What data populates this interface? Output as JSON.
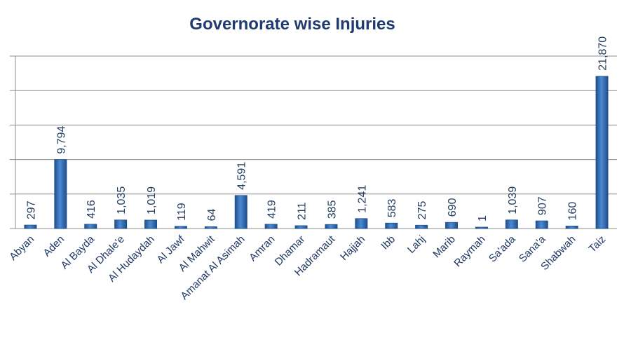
{
  "chart_data": {
    "type": "bar",
    "title": "Governorate wise Injuries",
    "categories": [
      "Abyan",
      "Aden",
      "Al Bayda",
      "Al Dhale'e",
      "Al Hudaydah",
      "Al Jawf",
      "Al Mahwit",
      "Amanat Al Asimah",
      "Amran",
      "Dhamar",
      "Hadramaut",
      "Hajjah",
      "Ibb",
      "Lahj",
      "Marib",
      "Raymah",
      "Sa'ada",
      "Sana'a",
      "Shabwah",
      "Taiz"
    ],
    "values": [
      297,
      9794,
      416,
      1035,
      1019,
      119,
      64,
      4591,
      419,
      211,
      385,
      1241,
      583,
      275,
      690,
      1,
      1039,
      907,
      160,
      21870
    ],
    "value_labels": [
      "297",
      "9,794",
      "416",
      "1,035",
      "1,019",
      "119",
      "64",
      "4,591",
      "419",
      "211",
      "385",
      "1,241",
      "583",
      "275",
      "690",
      "1",
      "1,039",
      "907",
      "160",
      "21,870"
    ],
    "color": "#2f6eb5",
    "ylim": [
      0,
      25000
    ],
    "yticks": [
      0,
      5000,
      10000,
      15000,
      20000,
      25000
    ],
    "grid": true
  }
}
